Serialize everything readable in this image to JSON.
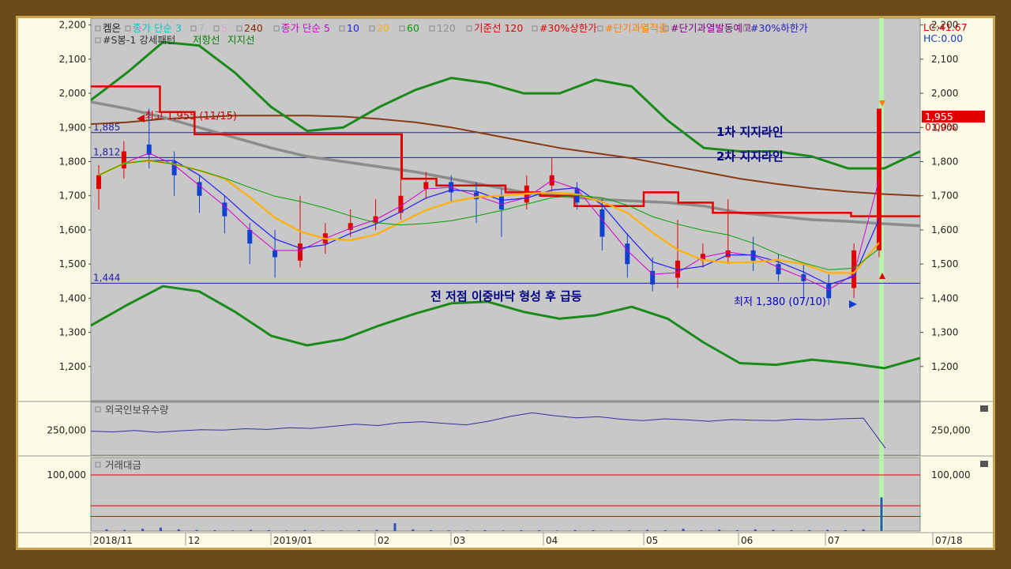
{
  "chart_data": [
    {
      "type": "line",
      "panel": "price",
      "legend_row1": [
        {
          "text": "켐온",
          "color": "#222222"
        },
        {
          "text": "종가 단순 3",
          "color": "#00c8c8"
        },
        {
          "text": "7",
          "color": "#b0b0b0"
        },
        {
          "text": "5",
          "color": "#e0a0e0"
        },
        {
          "text": "240",
          "color": "#8a2a00"
        },
        {
          "text": "종가 단순 5",
          "color": "#d000d0"
        },
        {
          "text": "10",
          "color": "#2020ff"
        },
        {
          "text": "20",
          "color": "#ffb000"
        },
        {
          "text": "60",
          "color": "#00a000"
        },
        {
          "text": "120",
          "color": "#909090"
        },
        {
          "text": "기준선 120",
          "color": "#e00000"
        },
        {
          "text": "#30%상한가",
          "color": "#e00000"
        },
        {
          "text": "#단기과열적출",
          "color": "#ff8000"
        },
        {
          "text": "#단기과열발동예고",
          "color": "#800080"
        },
        {
          "text": "#30%하한가",
          "color": "#2020c0"
        }
      ],
      "legend_row2": [
        {
          "text": "#S봉-1 강세패턴",
          "color": "#333333"
        },
        {
          "text": "저항선",
          "color": "#008000"
        },
        {
          "text": "지지선",
          "color": "#008000"
        }
      ],
      "ylim": [
        1100,
        2220
      ],
      "y_ticks": [
        "2,200",
        "2,100",
        "2,000",
        "1,900",
        "1,800",
        "1,700",
        "1,600",
        "1,500",
        "1,400",
        "1,300",
        "1,200"
      ],
      "y_tick_values": [
        2200,
        2100,
        2000,
        1900,
        1800,
        1700,
        1600,
        1500,
        1400,
        1300,
        1200
      ],
      "lc_label": "LC:41.67",
      "hc_label": "HC:0.00",
      "current_price": "1,955",
      "current_change": "0.00%",
      "hlines": [
        {
          "value": 1885,
          "label": "1,885"
        },
        {
          "value": 1812,
          "label": "1,812"
        },
        {
          "value": 1444,
          "label": "1,444"
        }
      ],
      "annotations": [
        {
          "text": "최고 1,955 (11/15)",
          "color": "#d00000"
        },
        {
          "text": "1차 지지라인",
          "color": "#000080"
        },
        {
          "text": "2차 지지라인",
          "color": "#000080"
        },
        {
          "text": "전 저점 이중바닥 형성 후 급등",
          "color": "#000080"
        },
        {
          "text": "최저 1,380 (07/10)",
          "color": "#0000c0"
        }
      ],
      "x_labels": [
        "2018/11",
        "12",
        "2019/01",
        "02",
        "03",
        "04",
        "05",
        "06",
        "07",
        "07/18"
      ],
      "series": [
        {
          "name": "240",
          "color": "#8a3a10",
          "values": [
            1910,
            1915,
            1925,
            1930,
            1935,
            1935,
            1935,
            1932,
            1925,
            1915,
            1900,
            1880,
            1860,
            1840,
            1825,
            1810,
            1790,
            1770,
            1750,
            1735,
            1722,
            1712,
            1705,
            1700
          ]
        },
        {
          "name": "120",
          "color": "#8c8c8c",
          "values": [
            1975,
            1955,
            1930,
            1900,
            1870,
            1840,
            1815,
            1800,
            1785,
            1770,
            1750,
            1730,
            1710,
            1700,
            1690,
            1685,
            1680,
            1670,
            1650,
            1640,
            1630,
            1625,
            1618,
            1612
          ]
        },
        {
          "name": "저항선",
          "color": "#1a8a1a",
          "values": [
            1980,
            2060,
            2150,
            2140,
            2060,
            1960,
            1890,
            1900,
            1960,
            2010,
            2045,
            2030,
            2000,
            2000,
            2040,
            2020,
            1920,
            1840,
            1830,
            1830,
            1815,
            1780,
            1780,
            1830
          ]
        },
        {
          "name": "지지선",
          "color": "#1a8a1a",
          "values": [
            1320,
            1380,
            1435,
            1420,
            1360,
            1290,
            1262,
            1280,
            1320,
            1355,
            1385,
            1390,
            1360,
            1340,
            1350,
            1375,
            1340,
            1270,
            1210,
            1205,
            1220,
            1210,
            1195,
            1225
          ]
        }
      ],
      "candles": [
        {
          "o": 1720,
          "c": 1760,
          "h": 1790,
          "l": 1660
        },
        {
          "o": 1780,
          "c": 1830,
          "h": 1860,
          "l": 1750
        },
        {
          "o": 1850,
          "c": 1820,
          "h": 1955,
          "l": 1780
        },
        {
          "o": 1800,
          "c": 1760,
          "h": 1830,
          "l": 1700
        },
        {
          "o": 1740,
          "c": 1700,
          "h": 1760,
          "l": 1650
        },
        {
          "o": 1680,
          "c": 1640,
          "h": 1700,
          "l": 1590
        },
        {
          "o": 1600,
          "c": 1560,
          "h": 1620,
          "l": 1500
        },
        {
          "o": 1540,
          "c": 1520,
          "h": 1600,
          "l": 1460
        },
        {
          "o": 1510,
          "c": 1560,
          "h": 1700,
          "l": 1490
        },
        {
          "o": 1560,
          "c": 1590,
          "h": 1620,
          "l": 1530
        },
        {
          "o": 1600,
          "c": 1620,
          "h": 1660,
          "l": 1580
        },
        {
          "o": 1620,
          "c": 1640,
          "h": 1690,
          "l": 1600
        },
        {
          "o": 1650,
          "c": 1700,
          "h": 1880,
          "l": 1630
        },
        {
          "o": 1720,
          "c": 1740,
          "h": 1770,
          "l": 1690
        },
        {
          "o": 1740,
          "c": 1710,
          "h": 1760,
          "l": 1680
        },
        {
          "o": 1710,
          "c": 1690,
          "h": 1740,
          "l": 1620
        },
        {
          "o": 1700,
          "c": 1660,
          "h": 1720,
          "l": 1580
        },
        {
          "o": 1680,
          "c": 1730,
          "h": 1760,
          "l": 1660
        },
        {
          "o": 1730,
          "c": 1760,
          "h": 1810,
          "l": 1710
        },
        {
          "o": 1720,
          "c": 1680,
          "h": 1740,
          "l": 1660
        },
        {
          "o": 1660,
          "c": 1580,
          "h": 1690,
          "l": 1540
        },
        {
          "o": 1560,
          "c": 1500,
          "h": 1590,
          "l": 1460
        },
        {
          "o": 1480,
          "c": 1440,
          "h": 1520,
          "l": 1420
        },
        {
          "o": 1460,
          "c": 1510,
          "h": 1630,
          "l": 1430
        },
        {
          "o": 1510,
          "c": 1530,
          "h": 1560,
          "l": 1490
        },
        {
          "o": 1520,
          "c": 1540,
          "h": 1690,
          "l": 1500
        },
        {
          "o": 1540,
          "c": 1510,
          "h": 1580,
          "l": 1480
        },
        {
          "o": 1500,
          "c": 1470,
          "h": 1530,
          "l": 1450
        },
        {
          "o": 1470,
          "c": 1450,
          "h": 1500,
          "l": 1400
        },
        {
          "o": 1440,
          "c": 1400,
          "h": 1470,
          "l": 1380
        },
        {
          "o": 1430,
          "c": 1540,
          "h": 1560,
          "l": 1400
        },
        {
          "o": 1540,
          "c": 1955,
          "h": 1955,
          "l": 1520
        }
      ]
    },
    {
      "type": "line",
      "panel": "foreign_holdings",
      "title": "외국인보유수량",
      "y_tick": "250,000",
      "y_tick_value": 250000,
      "ylim": [
        180000,
        330000
      ],
      "color": "#3030a0",
      "values": [
        248000,
        246000,
        250000,
        245000,
        249000,
        252000,
        251000,
        255000,
        253000,
        258000,
        256000,
        262000,
        268000,
        264000,
        272000,
        275000,
        270000,
        266000,
        276000,
        290000,
        300000,
        292000,
        286000,
        289000,
        282000,
        278000,
        283000,
        280000,
        276000,
        281000,
        279000,
        278000,
        282000,
        280000,
        283000,
        285000,
        200000
      ]
    },
    {
      "type": "bar",
      "panel": "trading_value",
      "title": "거래대금",
      "y_tick": "100,000",
      "y_tick_value": 100000,
      "ylim": [
        0,
        100000
      ],
      "bar_color": "#3050c0",
      "hlines": [
        100000,
        45000,
        26000
      ],
      "values": [
        3000,
        2000,
        4000,
        6000,
        3000,
        2000,
        1500,
        1000,
        2000,
        1500,
        1000,
        1800,
        1200,
        1000,
        1500,
        2000,
        14000,
        3000,
        1500,
        1000,
        1200,
        1500,
        1000,
        1500,
        1200,
        1000,
        1800,
        1500,
        1000,
        1200,
        2000,
        1500,
        4000,
        1500,
        2500,
        1500,
        3000,
        2000,
        1500,
        1800,
        2000,
        1500,
        3000,
        60000
      ]
    }
  ]
}
